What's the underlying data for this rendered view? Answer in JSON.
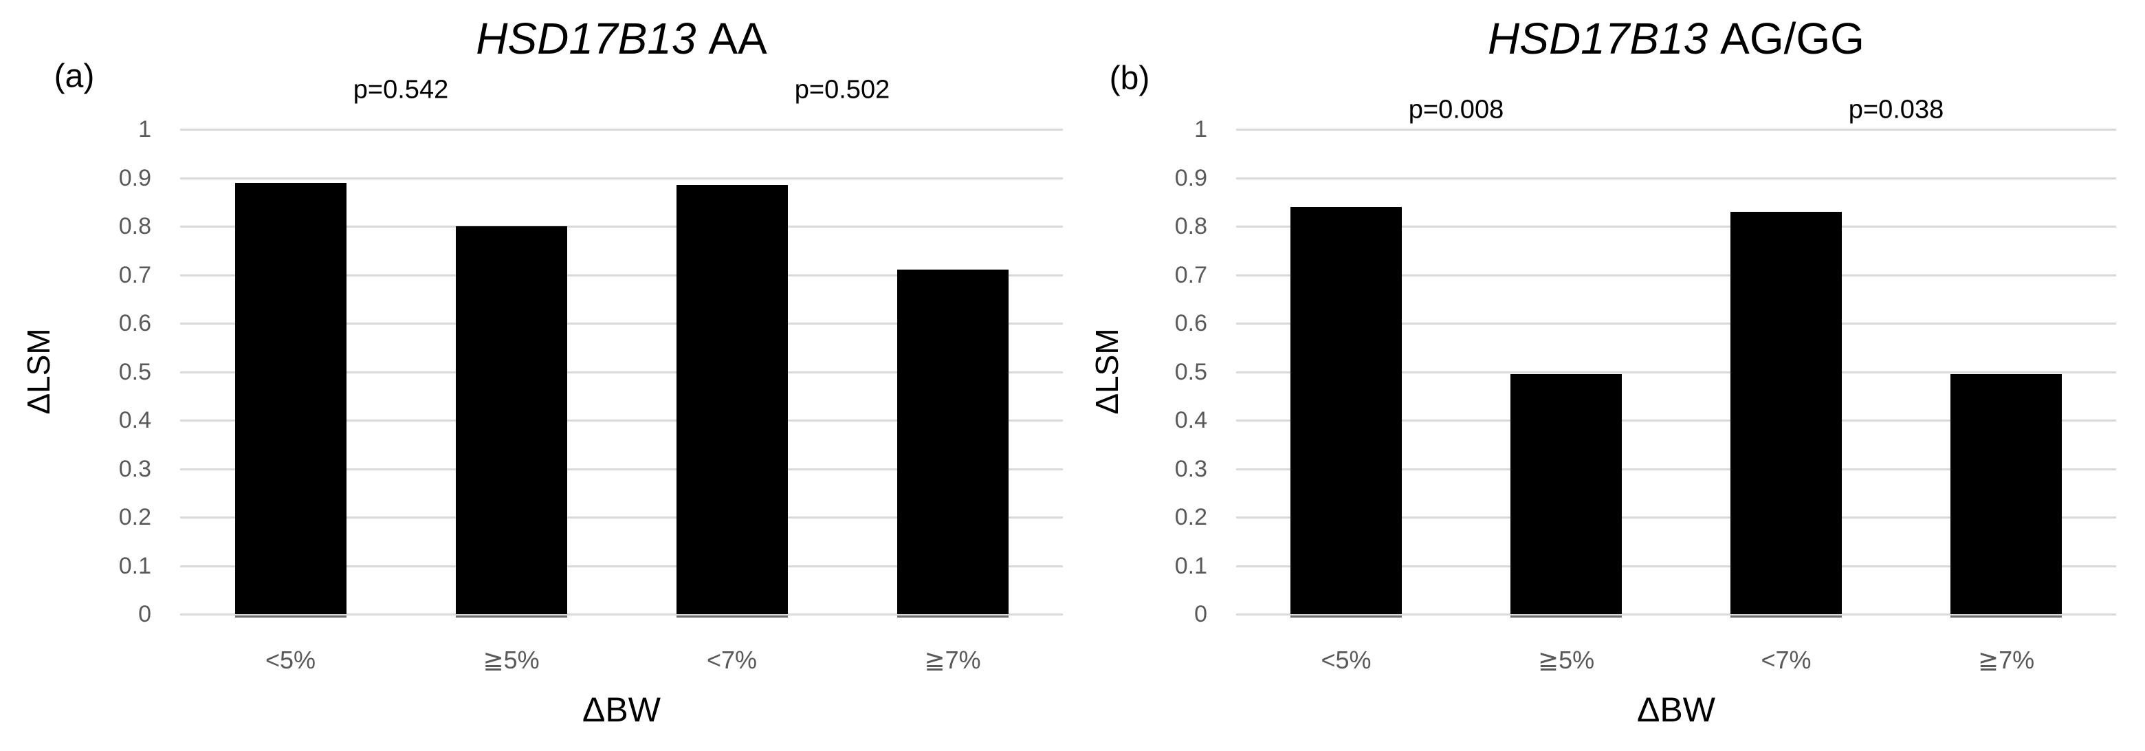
{
  "figure": {
    "background": "#ffffff",
    "description": "Two-panel bar chart figure comparing ΔLSM by ΔBW categories for HSD17B13 genotypes"
  },
  "styles": {
    "bar_color": "#000000",
    "gridline_color": "#d9d9d9",
    "baseline_shadow_color": "#6e6e6e",
    "tick_text_color": "#595959",
    "text_color": "#000000"
  },
  "chart_data": [
    {
      "type": "bar",
      "panel_label": "(a)",
      "title": "HSD17B13 AA",
      "title_italic_part": "HSD17B13",
      "title_regular_part": "AA",
      "categories": [
        "<5%",
        "≧5%",
        "<7%",
        "≧7%"
      ],
      "values": [
        0.89,
        0.8,
        0.885,
        0.71
      ],
      "xlabel": "ΔBW",
      "ylabel": "ΔLSM",
      "ylim": [
        0,
        1
      ],
      "ytick_labels": [
        "0",
        "0.1",
        "0.2",
        "0.3",
        "0.4",
        "0.5",
        "0.6",
        "0.7",
        "0.8",
        "0.9",
        "1"
      ],
      "grid": true,
      "legend": "none",
      "annotations": [
        {
          "text": "p=0.542",
          "between_bars": [
            0,
            1
          ]
        },
        {
          "text": "p=0.502",
          "between_bars": [
            2,
            3
          ]
        }
      ]
    },
    {
      "type": "bar",
      "panel_label": "(b)",
      "title": "HSD17B13 AG/GG",
      "title_italic_part": "HSD17B13",
      "title_regular_part": "AG/GG",
      "categories": [
        "<5%",
        "≧5%",
        "<7%",
        "≧7%"
      ],
      "values": [
        0.84,
        0.495,
        0.83,
        0.495
      ],
      "xlabel": "ΔBW",
      "ylabel": "ΔLSM",
      "ylim": [
        0,
        1
      ],
      "ytick_labels": [
        "0",
        "0.1",
        "0.2",
        "0.3",
        "0.4",
        "0.5",
        "0.6",
        "0.7",
        "0.8",
        "0.9",
        "1"
      ],
      "grid": true,
      "legend": "none",
      "annotations": [
        {
          "text": "p=0.008",
          "between_bars": [
            0,
            1
          ]
        },
        {
          "text": "p=0.038",
          "between_bars": [
            2,
            3
          ]
        }
      ]
    }
  ]
}
